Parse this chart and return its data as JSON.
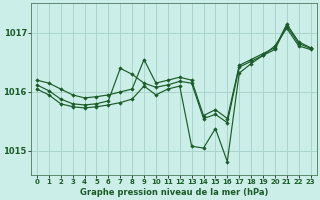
{
  "title": "Graphe pression niveau de la mer (hPa)",
  "bg_color": "#cceee8",
  "grid_color": "#aad4cc",
  "line_color": "#1a5c28",
  "marker_color": "#1a5c28",
  "xlim": [
    -0.5,
    23.5
  ],
  "ylim": [
    1014.6,
    1017.5
  ],
  "yticks": [
    1015,
    1016,
    1017
  ],
  "xticks": [
    0,
    1,
    2,
    3,
    4,
    5,
    6,
    7,
    8,
    9,
    10,
    11,
    12,
    13,
    14,
    15,
    16,
    17,
    18,
    19,
    20,
    21,
    22,
    23
  ],
  "series": [
    [
      1016.2,
      1016.15,
      1016.05,
      1015.95,
      1015.9,
      1015.92,
      1015.95,
      1016.0,
      1016.05,
      1016.55,
      1016.15,
      1016.2,
      1016.25,
      1016.2,
      1015.6,
      1015.7,
      1015.55,
      1016.45,
      1016.55,
      1016.65,
      1016.75,
      1017.15,
      1016.85,
      1016.75
    ],
    [
      1016.05,
      1015.95,
      1015.8,
      1015.75,
      1015.73,
      1015.75,
      1015.78,
      1015.82,
      1015.88,
      1016.1,
      1015.95,
      1016.05,
      1016.1,
      1015.08,
      1015.05,
      1015.38,
      1014.82,
      1016.32,
      1016.48,
      1016.62,
      1016.78,
      1017.08,
      1016.78,
      1016.72
    ],
    [
      1016.12,
      1016.02,
      1015.88,
      1015.8,
      1015.78,
      1015.8,
      1015.85,
      1016.4,
      1016.3,
      1016.15,
      1016.08,
      1016.12,
      1016.18,
      1016.15,
      1015.55,
      1015.62,
      1015.48,
      1016.42,
      1016.52,
      1016.62,
      1016.72,
      1017.12,
      1016.82,
      1016.74
    ]
  ]
}
